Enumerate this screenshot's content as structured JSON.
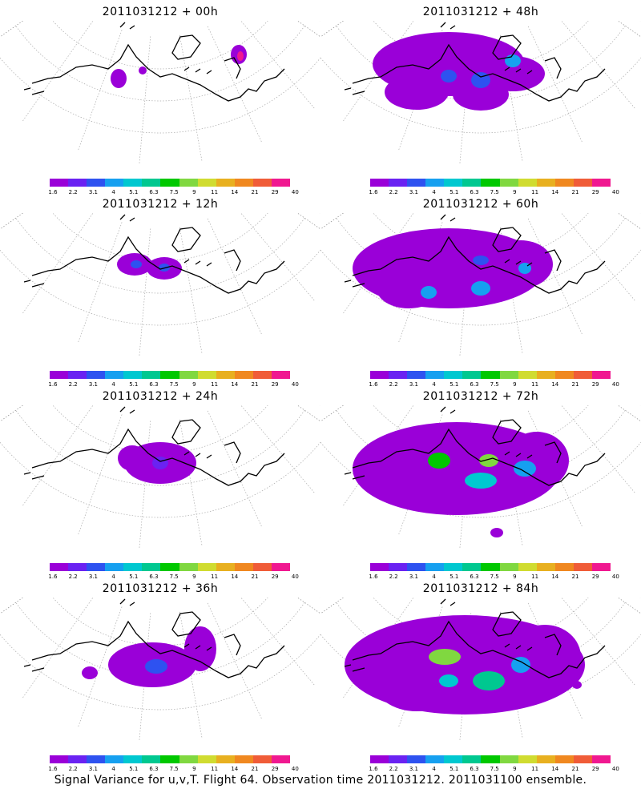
{
  "panels": [
    {
      "title": "2011031212 + 00h"
    },
    {
      "title": "2011031212 + 48h"
    },
    {
      "title": "2011031212 + 12h"
    },
    {
      "title": "2011031212 + 60h"
    },
    {
      "title": "2011031212 + 24h"
    },
    {
      "title": "2011031212 + 72h"
    },
    {
      "title": "2011031212 + 36h"
    },
    {
      "title": "2011031212 + 84h"
    }
  ],
  "legend": {
    "colors": [
      "#9a00d8",
      "#6a22f2",
      "#2e52f0",
      "#16a0f0",
      "#00c8d0",
      "#00c890",
      "#00c800",
      "#80d840",
      "#d0dc30",
      "#e8b020",
      "#f08820",
      "#f05c38",
      "#f01890"
    ],
    "ticks": [
      "1.6",
      "2.2",
      "3.1",
      "4",
      "5.1",
      "6.3",
      "7.5",
      "9",
      "11",
      "14",
      "21",
      "29",
      "40"
    ]
  },
  "caption": "Signal Variance for u,v,T. Flight 64. Observation time 2011031212. 2011031100 ensemble."
}
